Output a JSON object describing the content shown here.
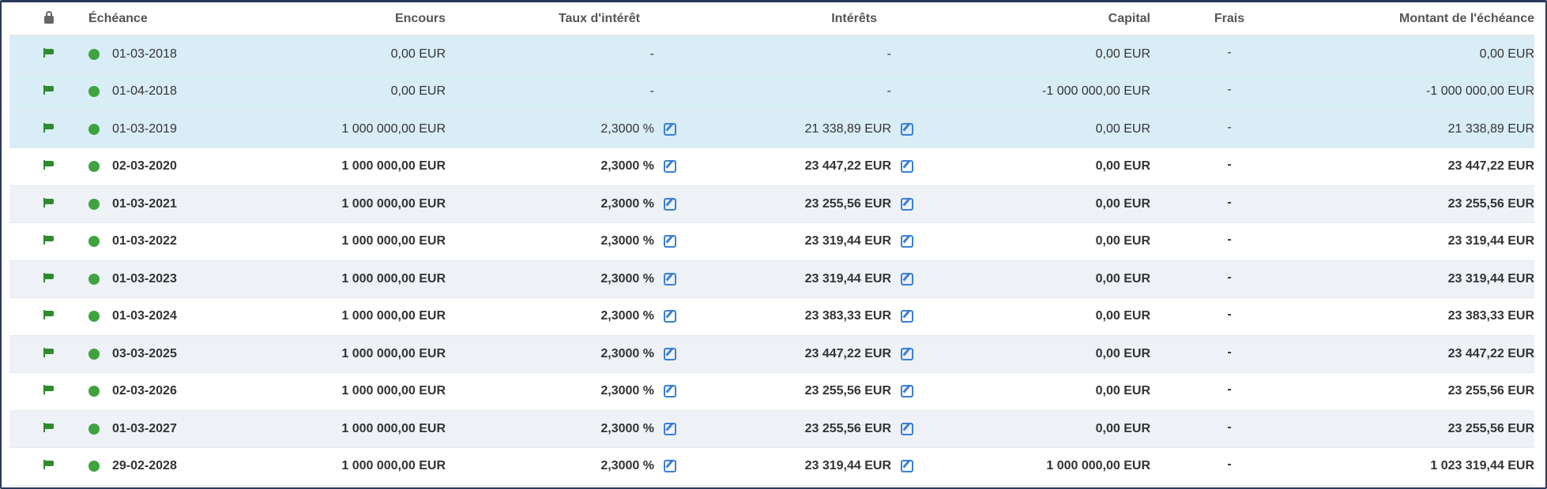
{
  "columns": {
    "lock": "lock-icon",
    "date": "Échéance",
    "encours": "Encours",
    "taux": "Taux d'intérêt",
    "interets": "Intérêts",
    "capital": "Capital",
    "frais": "Frais",
    "montant": "Montant de l'échéance"
  },
  "colors": {
    "highlight": "#d9edf7",
    "flag": "#2e8b2e",
    "dot": "#3fa33f",
    "edit": "#3a7fd5"
  },
  "rows": [
    {
      "date": "01-03-2018",
      "encours": "0,00 EUR",
      "taux": "-",
      "interets": "-",
      "capital": "0,00 EUR",
      "frais": "-",
      "montant": "0,00 EUR",
      "style": "hl",
      "editable": false
    },
    {
      "date": "01-04-2018",
      "encours": "0,00 EUR",
      "taux": "-",
      "interets": "-",
      "capital": "-1 000 000,00 EUR",
      "frais": "-",
      "montant": "-1 000 000,00 EUR",
      "style": "hl",
      "editable": false
    },
    {
      "date": "01-03-2019",
      "encours": "1 000 000,00 EUR",
      "taux": "2,3000 %",
      "interets": "21 338,89 EUR",
      "capital": "0,00 EUR",
      "frais": "-",
      "montant": "21 338,89 EUR",
      "style": "hl",
      "editable": true
    },
    {
      "date": "02-03-2020",
      "encours": "1 000 000,00 EUR",
      "taux": "2,3000 %",
      "interets": "23 447,22 EUR",
      "capital": "0,00 EUR",
      "frais": "-",
      "montant": "23 447,22 EUR",
      "style": "odd",
      "editable": true
    },
    {
      "date": "01-03-2021",
      "encours": "1 000 000,00 EUR",
      "taux": "2,3000 %",
      "interets": "23 255,56 EUR",
      "capital": "0,00 EUR",
      "frais": "-",
      "montant": "23 255,56 EUR",
      "style": "even",
      "editable": true
    },
    {
      "date": "01-03-2022",
      "encours": "1 000 000,00 EUR",
      "taux": "2,3000 %",
      "interets": "23 319,44 EUR",
      "capital": "0,00 EUR",
      "frais": "-",
      "montant": "23 319,44 EUR",
      "style": "odd",
      "editable": true
    },
    {
      "date": "01-03-2023",
      "encours": "1 000 000,00 EUR",
      "taux": "2,3000 %",
      "interets": "23 319,44 EUR",
      "capital": "0,00 EUR",
      "frais": "-",
      "montant": "23 319,44 EUR",
      "style": "even",
      "editable": true
    },
    {
      "date": "01-03-2024",
      "encours": "1 000 000,00 EUR",
      "taux": "2,3000 %",
      "interets": "23 383,33 EUR",
      "capital": "0,00 EUR",
      "frais": "-",
      "montant": "23 383,33 EUR",
      "style": "odd",
      "editable": true
    },
    {
      "date": "03-03-2025",
      "encours": "1 000 000,00 EUR",
      "taux": "2,3000 %",
      "interets": "23 447,22 EUR",
      "capital": "0,00 EUR",
      "frais": "-",
      "montant": "23 447,22 EUR",
      "style": "even",
      "editable": true
    },
    {
      "date": "02-03-2026",
      "encours": "1 000 000,00 EUR",
      "taux": "2,3000 %",
      "interets": "23 255,56 EUR",
      "capital": "0,00 EUR",
      "frais": "-",
      "montant": "23 255,56 EUR",
      "style": "odd",
      "editable": true
    },
    {
      "date": "01-03-2027",
      "encours": "1 000 000,00 EUR",
      "taux": "2,3000 %",
      "interets": "23 255,56 EUR",
      "capital": "0,00 EUR",
      "frais": "-",
      "montant": "23 255,56 EUR",
      "style": "even",
      "editable": true
    },
    {
      "date": "29-02-2028",
      "encours": "1 000 000,00 EUR",
      "taux": "2,3000 %",
      "interets": "23 319,44 EUR",
      "capital": "1 000 000,00 EUR",
      "frais": "-",
      "montant": "1 023 319,44 EUR",
      "style": "odd",
      "editable": true
    }
  ]
}
